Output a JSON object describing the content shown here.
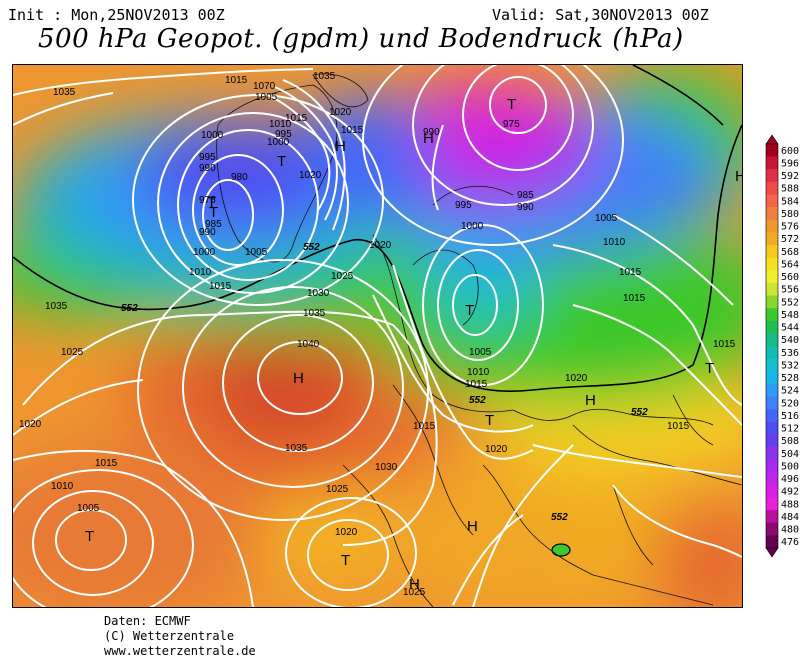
{
  "header": {
    "init": "Init : Mon,25NOV2013 00Z",
    "valid": "Valid: Sat,30NOV2013 00Z",
    "title": "500 hPa Geopot. (gpdm) und Bodendruck (hPa)"
  },
  "footer": {
    "lines": [
      "Daten: ECMWF",
      "(C) Wetterzentrale",
      "www.wetterzentrale.de"
    ]
  },
  "colorbar": {
    "labels": [
      "600",
      "596",
      "592",
      "588",
      "584",
      "580",
      "576",
      "572",
      "568",
      "564",
      "560",
      "556",
      "552",
      "548",
      "544",
      "540",
      "536",
      "532",
      "528",
      "524",
      "520",
      "516",
      "512",
      "508",
      "504",
      "500",
      "496",
      "492",
      "488",
      "484",
      "480",
      "476"
    ],
    "colors": [
      "#a4001e",
      "#c8163a",
      "#e03049",
      "#ee4a48",
      "#f2664a",
      "#f0803f",
      "#ef9630",
      "#f0ab22",
      "#f6c81d",
      "#f6df23",
      "#efee2a",
      "#c8e632",
      "#88d62e",
      "#3dc82c",
      "#1fbe52",
      "#16bc86",
      "#12bdad",
      "#14bfd1",
      "#1ab6ea",
      "#2f9df4",
      "#3d82f6",
      "#4466f6",
      "#4f4cf2",
      "#6a3cf0",
      "#8a34ee",
      "#a52ceb",
      "#c024e6",
      "#d820e2",
      "#e820db",
      "#b8109c",
      "#8a0870",
      "#650050"
    ]
  },
  "map_labels": {
    "isobars": [
      "1035",
      "1015",
      "1070",
      "1035",
      "1020",
      "1015",
      "1000",
      "995",
      "990",
      "980",
      "975",
      "985",
      "990",
      "1000",
      "1005",
      "1010",
      "1015",
      "1035",
      "1020",
      "1025",
      "1030",
      "1035",
      "1040",
      "1035",
      "1030",
      "1025",
      "1020",
      "1015",
      "1010",
      "1005",
      "1020",
      "1015",
      "1010",
      "1005",
      "1000",
      "995",
      "990",
      "1025",
      "1020",
      "1005",
      "1010",
      "1015",
      "1020",
      "1015",
      "1020",
      "1015",
      "1025",
      "975",
      "985",
      "990",
      "995",
      "1000",
      "1005",
      "1010",
      "1015",
      "1015",
      "1015"
    ],
    "contour_552": [
      "552",
      "552",
      "552",
      "552",
      "552"
    ],
    "systems": [
      "T",
      "H",
      "T",
      "H",
      "H",
      "T",
      "T",
      "T",
      "H",
      "T",
      "T",
      "H",
      "T",
      "H",
      "H",
      "T",
      "H"
    ]
  }
}
